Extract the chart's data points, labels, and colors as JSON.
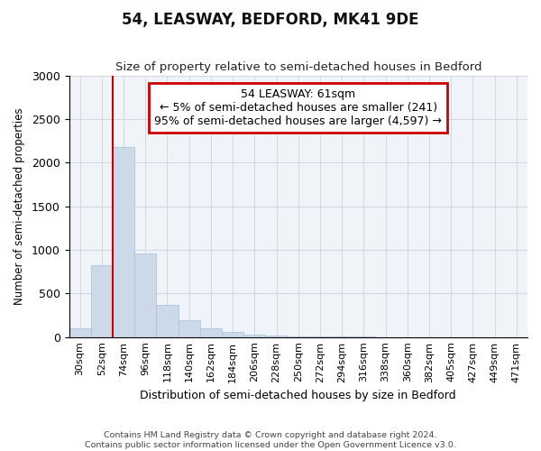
{
  "title": "54, LEASWAY, BEDFORD, MK41 9DE",
  "subtitle": "Size of property relative to semi-detached houses in Bedford",
  "xlabel": "Distribution of semi-detached houses by size in Bedford",
  "ylabel": "Number of semi-detached properties",
  "footnote1": "Contains HM Land Registry data © Crown copyright and database right 2024.",
  "footnote2": "Contains public sector information licensed under the Open Government Licence v3.0.",
  "property_label": "54 LEASWAY: 61sqm",
  "annotation_line1": "← 5% of semi-detached houses are smaller (241)",
  "annotation_line2": "95% of semi-detached houses are larger (4,597) →",
  "bar_color": "#ccd9e8",
  "bar_edge_color": "#aabfd4",
  "red_line_color": "#cc0000",
  "annotation_box_edgecolor": "#cc0000",
  "categories": [
    "30sqm",
    "52sqm",
    "74sqm",
    "96sqm",
    "118sqm",
    "140sqm",
    "162sqm",
    "184sqm",
    "206sqm",
    "228sqm",
    "250sqm",
    "272sqm",
    "294sqm",
    "316sqm",
    "338sqm",
    "360sqm",
    "382sqm",
    "405sqm",
    "427sqm",
    "449sqm",
    "471sqm"
  ],
  "bar_heights": [
    100,
    820,
    2180,
    960,
    370,
    190,
    95,
    55,
    30,
    20,
    10,
    5,
    3,
    2,
    1,
    0,
    0,
    0,
    0,
    0,
    0
  ],
  "ylim": [
    0,
    3000
  ],
  "yticks": [
    0,
    500,
    1000,
    1500,
    2000,
    2500,
    3000
  ],
  "red_line_x": 1.5,
  "figsize": [
    6.0,
    5.0
  ],
  "dpi": 100
}
